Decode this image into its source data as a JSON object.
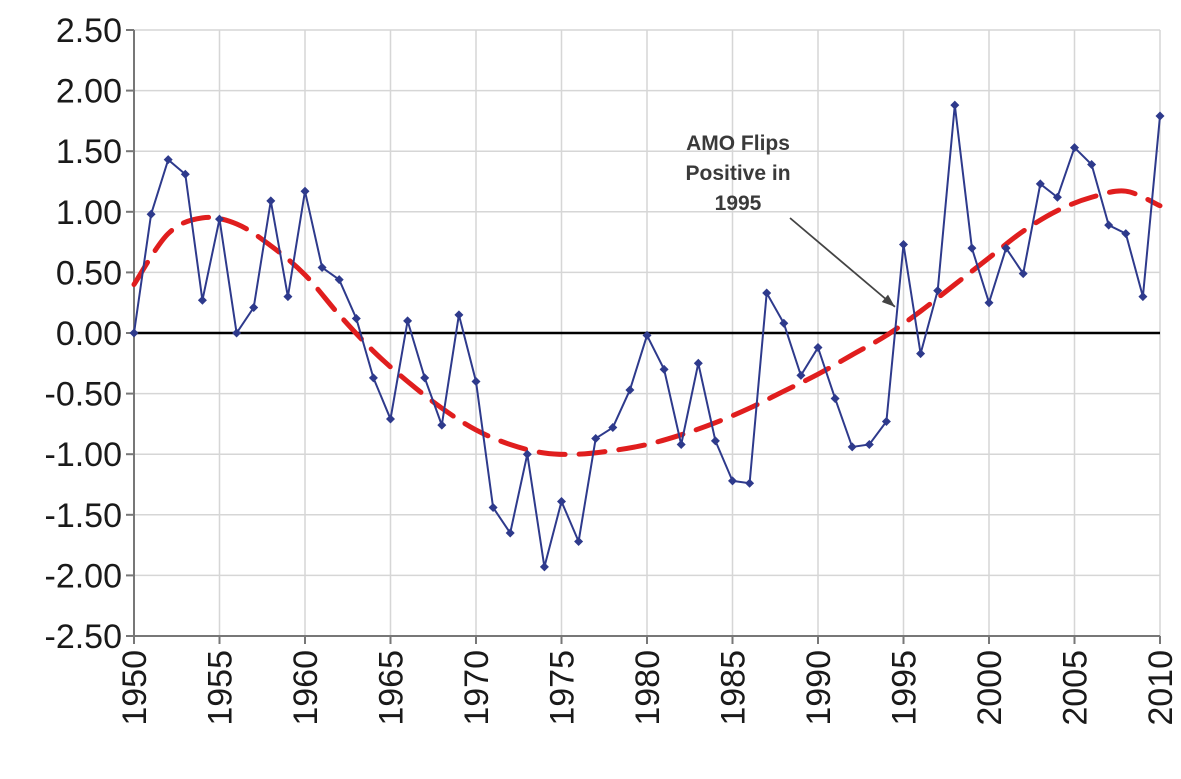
{
  "chart_data": {
    "type": "line",
    "title": "",
    "xlabel": "",
    "ylabel": "",
    "xlim": [
      1950,
      2010
    ],
    "ylim": [
      -2.5,
      2.5
    ],
    "x_ticks": [
      1950,
      1955,
      1960,
      1965,
      1970,
      1975,
      1980,
      1985,
      1990,
      1995,
      2000,
      2005,
      2010
    ],
    "x_tick_labels": [
      "1950",
      "1955",
      "1960",
      "1965",
      "1970",
      "1975",
      "1980",
      "1985",
      "1990",
      "1995",
      "2000",
      "2005",
      "2010"
    ],
    "y_ticks": [
      2.5,
      2.0,
      1.5,
      1.0,
      0.5,
      0.0,
      -0.5,
      -1.0,
      -1.5,
      -2.0,
      -2.5
    ],
    "y_tick_labels": [
      "2.50",
      "2.00",
      "1.50",
      "1.00",
      "0.50",
      "0.00",
      "-0.50",
      "-1.00",
      "-1.50",
      "-2.00",
      "-2.50"
    ],
    "grid": true,
    "legend": "none",
    "zero_line": true,
    "colors": {
      "series": "#2e3a8c",
      "trend": "#e01e1e",
      "grid": "#d6d6d6",
      "axis": "#000000"
    },
    "series": [
      {
        "x": [
          1950,
          1951,
          1952,
          1953,
          1954,
          1955,
          1956,
          1957,
          1958,
          1959,
          1960,
          1961,
          1962,
          1963,
          1964,
          1965,
          1966,
          1967,
          1968,
          1969,
          1970,
          1971,
          1972,
          1973,
          1974,
          1975,
          1976,
          1977,
          1978,
          1979,
          1980,
          1981,
          1982,
          1983,
          1984,
          1985,
          1986,
          1987,
          1988,
          1989,
          1990,
          1991,
          1992,
          1993,
          1994,
          1995,
          1996,
          1997,
          1998,
          1999,
          2000,
          2001,
          2002,
          2003,
          2004,
          2005,
          2006,
          2007,
          2008,
          2009,
          2010
        ],
        "values": [
          0.0,
          0.98,
          1.43,
          1.31,
          0.27,
          0.94,
          0.0,
          0.21,
          1.09,
          0.3,
          1.17,
          0.54,
          0.44,
          0.12,
          -0.37,
          -0.71,
          0.1,
          -0.37,
          -0.76,
          0.15,
          -0.4,
          -1.44,
          -1.65,
          -1.0,
          -1.93,
          -1.39,
          -1.72,
          -0.87,
          -0.78,
          -0.47,
          -0.02,
          -0.3,
          -0.92,
          -0.25,
          -0.89,
          -1.22,
          -1.24,
          0.33,
          0.08,
          -0.35,
          -0.12,
          -0.54,
          -0.94,
          -0.92,
          -0.73,
          0.73,
          -0.17,
          0.35,
          1.88,
          0.7,
          0.25,
          0.7,
          0.49,
          1.23,
          1.12,
          1.53,
          1.39,
          0.89,
          0.82,
          0.3,
          1.79
        ]
      },
      {
        "style": "dashed",
        "x": [
          1950,
          1952,
          1954,
          1956,
          1958,
          1960,
          1962,
          1964,
          1966,
          1968,
          1970,
          1972,
          1974,
          1976,
          1978,
          1980,
          1982,
          1984,
          1986,
          1988,
          1990,
          1992,
          1994,
          1996,
          1998,
          2000,
          2002,
          2004,
          2006,
          2008,
          2010
        ],
        "values": [
          0.4,
          0.82,
          0.95,
          0.9,
          0.72,
          0.48,
          0.15,
          -0.15,
          -0.4,
          -0.62,
          -0.8,
          -0.92,
          -0.99,
          -1.0,
          -0.97,
          -0.92,
          -0.84,
          -0.74,
          -0.62,
          -0.48,
          -0.34,
          -0.18,
          -0.02,
          0.18,
          0.4,
          0.62,
          0.84,
          1.01,
          1.12,
          1.17,
          1.05
        ]
      }
    ],
    "annotations": [
      {
        "lines": [
          "AMO Flips",
          "Positive in",
          "1995"
        ],
        "points_to": {
          "x": 1994.5,
          "y": 0.15
        }
      }
    ]
  }
}
